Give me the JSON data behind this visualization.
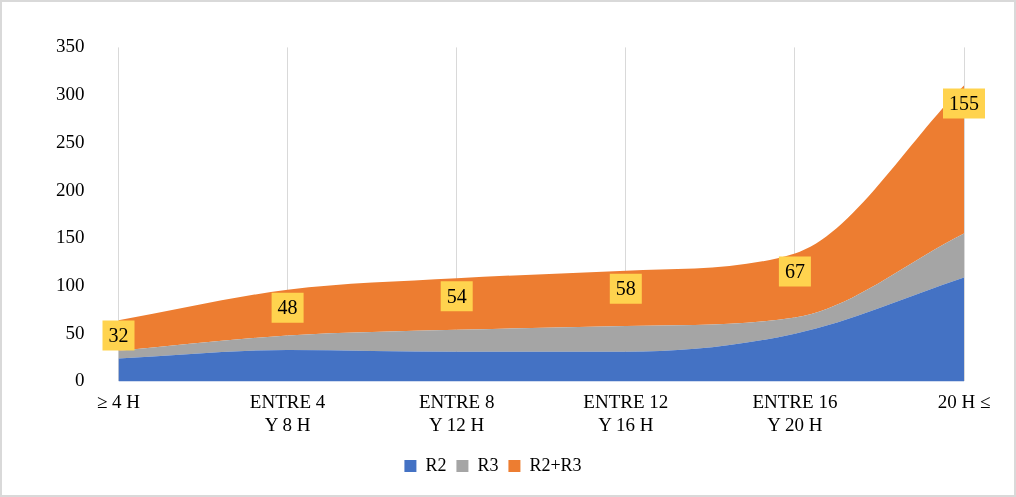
{
  "chart_data": {
    "type": "area",
    "stacked": true,
    "categories": [
      "≥ 4 H",
      "ENTRE 4 Y 8 H",
      "ENTRE 8 Y 12 H",
      "ENTRE 12 Y 16 H",
      "ENTRE 16 Y 20 H",
      "20 H ≤"
    ],
    "series": [
      {
        "name": "R2",
        "color": "#4472c4",
        "values": [
          24,
          33,
          31,
          31,
          50,
          109
        ]
      },
      {
        "name": "R3",
        "color": "#a5a5a5",
        "values": [
          8,
          15,
          23,
          27,
          17,
          46
        ]
      },
      {
        "name": "R2+R3",
        "color": "#ed7d31",
        "values": [
          32,
          48,
          54,
          58,
          67,
          155
        ],
        "value_labels": [
          "32",
          "48",
          "54",
          "58",
          "67",
          "155"
        ]
      }
    ],
    "ylim": [
      0,
      350
    ],
    "yticks": [
      0,
      50,
      100,
      150,
      200,
      250,
      300,
      350
    ],
    "grid": "x",
    "legend": "bottom"
  }
}
